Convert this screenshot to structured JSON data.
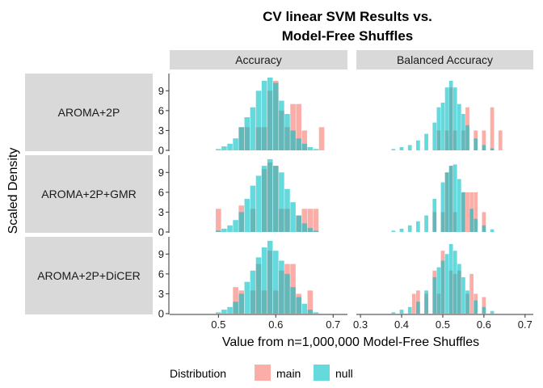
{
  "chart_data": {
    "type": "histogram",
    "title_lines": [
      "CV linear SVM Results vs.",
      "Model-Free Shuffles"
    ],
    "xlabel": "Value from n=1,000,000 Model-Free Shuffles",
    "ylabel": "Scaled Density",
    "legend": {
      "title": "Distribution",
      "position": "bottom",
      "entries": [
        {
          "name": "main",
          "color": "#F8766D"
        },
        {
          "name": "null",
          "color": "#00BFC4"
        }
      ]
    },
    "columns": [
      {
        "label": "Accuracy",
        "xlim": [
          0.415,
          0.725
        ],
        "ticks": [
          0.5,
          0.6,
          0.7
        ],
        "tick_labels": [
          "0.5",
          "0.6",
          "0.7"
        ]
      },
      {
        "label": "Balanced Accuracy",
        "xlim": [
          0.29,
          0.72
        ],
        "ticks": [
          0.3,
          0.4,
          0.5,
          0.6,
          0.7
        ],
        "tick_labels": [
          "0.3",
          "0.4",
          "0.5",
          "0.6",
          "0.7"
        ]
      }
    ],
    "rows": [
      {
        "label": "AROMA+2P"
      },
      {
        "label": "AROMA+2P+GMR"
      },
      {
        "label": "AROMA+2P+DiCER"
      }
    ],
    "ylim": [
      0,
      11.6
    ],
    "yticks": [
      0,
      3,
      6,
      9
    ],
    "ytick_labels": [
      "0",
      "3",
      "6",
      "9"
    ],
    "panels": [
      {
        "row": 0,
        "col": 0,
        "null": [
          [
            0.5,
            0.2
          ],
          [
            0.51,
            0.6
          ],
          [
            0.52,
            1.0
          ],
          [
            0.53,
            1.8
          ],
          [
            0.54,
            3.5
          ],
          [
            0.55,
            5.0
          ],
          [
            0.56,
            6.5
          ],
          [
            0.57,
            9.0
          ],
          [
            0.58,
            10.5
          ],
          [
            0.59,
            11.0
          ],
          [
            0.6,
            10.2
          ],
          [
            0.61,
            7.5
          ],
          [
            0.62,
            5.5
          ],
          [
            0.63,
            3.0
          ],
          [
            0.64,
            1.8
          ],
          [
            0.65,
            1.0
          ],
          [
            0.66,
            0.5
          ],
          [
            0.67,
            0.2
          ]
        ],
        "main": [
          [
            0.54,
            3.5
          ],
          [
            0.55,
            3.5
          ],
          [
            0.57,
            3.5
          ],
          [
            0.58,
            3.5
          ],
          [
            0.59,
            9.0
          ],
          [
            0.6,
            10.5
          ],
          [
            0.61,
            6.0
          ],
          [
            0.62,
            3.5
          ],
          [
            0.63,
            7.0
          ],
          [
            0.64,
            7.0
          ],
          [
            0.65,
            3.0
          ],
          [
            0.68,
            3.5
          ]
        ]
      },
      {
        "row": 0,
        "col": 1,
        "null": [
          [
            0.38,
            0.2
          ],
          [
            0.4,
            0.5
          ],
          [
            0.42,
            0.8
          ],
          [
            0.44,
            1.5
          ],
          [
            0.46,
            2.5
          ],
          [
            0.48,
            4.2
          ],
          [
            0.49,
            6.5
          ],
          [
            0.5,
            7.2
          ],
          [
            0.51,
            9.5
          ],
          [
            0.52,
            10.5
          ],
          [
            0.53,
            9.5
          ],
          [
            0.54,
            7.0
          ],
          [
            0.55,
            5.5
          ],
          [
            0.56,
            3.8
          ],
          [
            0.58,
            1.8
          ],
          [
            0.6,
            0.8
          ],
          [
            0.62,
            0.3
          ]
        ],
        "main": [
          [
            0.49,
            3.0
          ],
          [
            0.51,
            3.0
          ],
          [
            0.52,
            9.5
          ],
          [
            0.53,
            3.0
          ],
          [
            0.55,
            3.0
          ],
          [
            0.56,
            6.5
          ],
          [
            0.58,
            3.0
          ],
          [
            0.6,
            3.0
          ],
          [
            0.62,
            6.5
          ],
          [
            0.64,
            3.0
          ]
        ]
      },
      {
        "row": 1,
        "col": 0,
        "null": [
          [
            0.5,
            0.2
          ],
          [
            0.51,
            0.5
          ],
          [
            0.52,
            1.0
          ],
          [
            0.53,
            1.8
          ],
          [
            0.54,
            3.0
          ],
          [
            0.55,
            5.0
          ],
          [
            0.56,
            7.0
          ],
          [
            0.57,
            8.5
          ],
          [
            0.58,
            10.0
          ],
          [
            0.59,
            11.0
          ],
          [
            0.6,
            10.0
          ],
          [
            0.61,
            9.0
          ],
          [
            0.62,
            6.5
          ],
          [
            0.63,
            4.5
          ],
          [
            0.64,
            2.5
          ],
          [
            0.65,
            1.3
          ],
          [
            0.66,
            0.6
          ],
          [
            0.67,
            0.2
          ]
        ],
        "main": [
          [
            0.5,
            3.5
          ],
          [
            0.54,
            4.0
          ],
          [
            0.56,
            3.5
          ],
          [
            0.58,
            9.5
          ],
          [
            0.59,
            10.5
          ],
          [
            0.6,
            10.0
          ],
          [
            0.61,
            3.5
          ],
          [
            0.62,
            3.5
          ],
          [
            0.64,
            2.5
          ],
          [
            0.65,
            3.5
          ],
          [
            0.66,
            3.5
          ],
          [
            0.67,
            3.5
          ]
        ]
      },
      {
        "row": 1,
        "col": 1,
        "null": [
          [
            0.38,
            0.2
          ],
          [
            0.4,
            0.5
          ],
          [
            0.42,
            1.0
          ],
          [
            0.44,
            1.6
          ],
          [
            0.46,
            2.5
          ],
          [
            0.48,
            5.0
          ],
          [
            0.5,
            7.5
          ],
          [
            0.51,
            9.0
          ],
          [
            0.52,
            10.0
          ],
          [
            0.53,
            10.2
          ],
          [
            0.54,
            8.0
          ],
          [
            0.55,
            6.0
          ],
          [
            0.57,
            3.5
          ],
          [
            0.58,
            2.0
          ],
          [
            0.6,
            1.0
          ],
          [
            0.62,
            0.4
          ]
        ],
        "main": [
          [
            0.48,
            3.0
          ],
          [
            0.5,
            3.0
          ],
          [
            0.51,
            9.0
          ],
          [
            0.52,
            10.0
          ],
          [
            0.53,
            3.0
          ],
          [
            0.55,
            6.0
          ],
          [
            0.56,
            6.0
          ],
          [
            0.57,
            6.0
          ],
          [
            0.58,
            6.0
          ],
          [
            0.6,
            3.0
          ]
        ]
      },
      {
        "row": 2,
        "col": 0,
        "null": [
          [
            0.5,
            0.2
          ],
          [
            0.51,
            0.6
          ],
          [
            0.52,
            1.0
          ],
          [
            0.53,
            1.8
          ],
          [
            0.54,
            3.0
          ],
          [
            0.55,
            4.8
          ],
          [
            0.56,
            6.5
          ],
          [
            0.57,
            8.5
          ],
          [
            0.58,
            10.0
          ],
          [
            0.59,
            11.0
          ],
          [
            0.6,
            9.5
          ],
          [
            0.61,
            8.0
          ],
          [
            0.62,
            6.0
          ],
          [
            0.63,
            4.0
          ],
          [
            0.64,
            2.5
          ],
          [
            0.65,
            1.5
          ],
          [
            0.66,
            0.6
          ],
          [
            0.67,
            0.2
          ]
        ],
        "main": [
          [
            0.53,
            4.0
          ],
          [
            0.54,
            3.5
          ],
          [
            0.56,
            3.5
          ],
          [
            0.57,
            7.5
          ],
          [
            0.58,
            3.5
          ],
          [
            0.59,
            9.5
          ],
          [
            0.6,
            3.5
          ],
          [
            0.61,
            6.5
          ],
          [
            0.62,
            7.5
          ],
          [
            0.63,
            7.5
          ],
          [
            0.64,
            3.0
          ],
          [
            0.66,
            3.5
          ]
        ]
      },
      {
        "row": 2,
        "col": 1,
        "null": [
          [
            0.38,
            0.2
          ],
          [
            0.4,
            0.6
          ],
          [
            0.42,
            1.0
          ],
          [
            0.44,
            1.8
          ],
          [
            0.46,
            3.5
          ],
          [
            0.48,
            5.5
          ],
          [
            0.49,
            7.0
          ],
          [
            0.5,
            8.0
          ],
          [
            0.51,
            9.0
          ],
          [
            0.52,
            10.5
          ],
          [
            0.53,
            9.5
          ],
          [
            0.54,
            7.5
          ],
          [
            0.55,
            5.5
          ],
          [
            0.56,
            3.5
          ],
          [
            0.58,
            2.0
          ],
          [
            0.6,
            1.0
          ],
          [
            0.62,
            0.4
          ]
        ],
        "main": [
          [
            0.43,
            3.0
          ],
          [
            0.44,
            3.5
          ],
          [
            0.46,
            3.0
          ],
          [
            0.48,
            6.5
          ],
          [
            0.49,
            3.0
          ],
          [
            0.5,
            9.5
          ],
          [
            0.52,
            6.5
          ],
          [
            0.53,
            6.0
          ],
          [
            0.54,
            6.5
          ],
          [
            0.56,
            3.0
          ],
          [
            0.57,
            6.0
          ],
          [
            0.58,
            3.0
          ],
          [
            0.6,
            2.5
          ]
        ]
      }
    ]
  }
}
